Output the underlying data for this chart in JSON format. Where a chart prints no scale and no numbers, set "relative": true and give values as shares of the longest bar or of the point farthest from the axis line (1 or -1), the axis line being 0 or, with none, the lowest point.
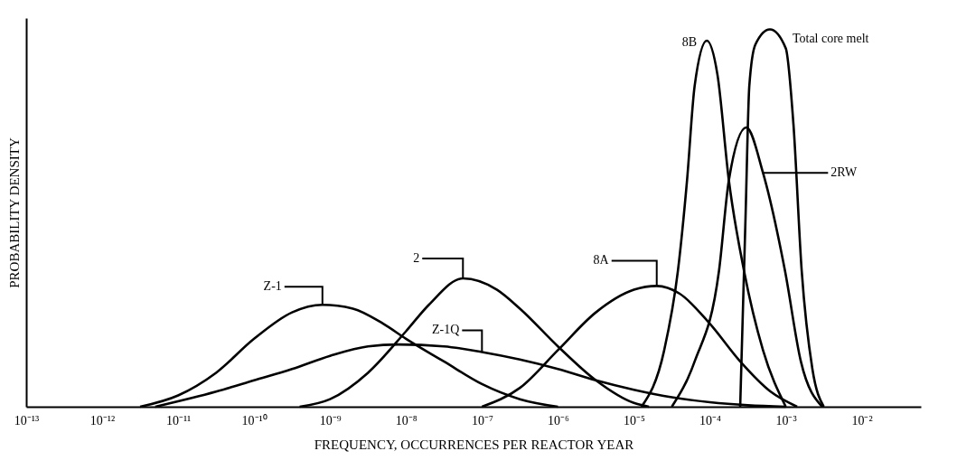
{
  "chart_data": {
    "type": "line",
    "relative": true,
    "xlabel": "FREQUENCY, OCCURRENCES PER REACTOR YEAR",
    "ylabel": "PROBABILITY DENSITY",
    "log": "x",
    "grid": false,
    "legend": false,
    "marker": "none",
    "line_style": "solid",
    "xlim": [
      1e-13,
      0.06
    ],
    "xticks": [
      {
        "value": 1e-13,
        "label": "10⁻¹³"
      },
      {
        "value": 1e-12,
        "label": "10⁻¹²"
      },
      {
        "value": 1e-11,
        "label": "10⁻¹¹"
      },
      {
        "value": 1e-10,
        "label": "10⁻¹⁰"
      },
      {
        "value": 1e-09,
        "label": "10⁻⁹"
      },
      {
        "value": 1e-08,
        "label": "10⁻⁸"
      },
      {
        "value": 1e-07,
        "label": "10⁻⁷"
      },
      {
        "value": 1e-06,
        "label": "10⁻⁶"
      },
      {
        "value": 1e-05,
        "label": "10⁻⁵"
      },
      {
        "value": 0.0001,
        "label": "10⁻⁴"
      },
      {
        "value": 0.001,
        "label": "10⁻³"
      },
      {
        "value": 0.01,
        "label": "10⁻²"
      }
    ],
    "series": [
      {
        "name": "Z-1",
        "color": "#000000",
        "x": [
          3.16e-12,
          1e-11,
          3.16e-11,
          1e-10,
          3.16e-10,
          7.94e-10,
          2e-09,
          5.01e-09,
          1e-08,
          3.16e-08,
          1e-07,
          3.16e-07,
          1e-06
        ],
        "values": [
          0,
          0.03,
          0.09,
          0.18,
          0.25,
          0.27,
          0.26,
          0.22,
          0.18,
          0.12,
          0.06,
          0.02,
          0
        ]
      },
      {
        "name": "Z-1Q",
        "color": "#000000",
        "x": [
          5.01e-12,
          3.16e-11,
          1e-10,
          3.16e-10,
          1e-09,
          3.16e-09,
          7.94e-09,
          3.16e-08,
          1e-07,
          3.16e-07,
          1e-06,
          3.16e-06,
          1e-05,
          3.16e-05,
          0.0001,
          0.000316,
          0.001
        ],
        "values": [
          0,
          0.04,
          0.07,
          0.1,
          0.135,
          0.16,
          0.165,
          0.16,
          0.145,
          0.125,
          0.1,
          0.07,
          0.045,
          0.025,
          0.012,
          0.004,
          0
        ]
      },
      {
        "name": "2",
        "color": "#000000",
        "x": [
          3.98e-10,
          1e-09,
          3.16e-09,
          1e-08,
          2e-08,
          5.62e-08,
          1.58e-07,
          3.16e-07,
          1e-06,
          3.16e-06,
          1e-05,
          1.58e-05
        ],
        "values": [
          0,
          0.02,
          0.09,
          0.2,
          0.27,
          0.34,
          0.31,
          0.26,
          0.16,
          0.07,
          0.01,
          0
        ]
      },
      {
        "name": "8A",
        "color": "#000000",
        "x": [
          1e-07,
          3.16e-07,
          1e-06,
          3.16e-06,
          1e-05,
          2e-05,
          3.98e-05,
          0.0001,
          0.000251,
          0.000631,
          0.00141
        ],
        "values": [
          0,
          0.05,
          0.15,
          0.25,
          0.31,
          0.32,
          0.3,
          0.22,
          0.12,
          0.04,
          0
        ]
      },
      {
        "name": "8B",
        "color": "#000000",
        "x": [
          1.26e-05,
          2.51e-05,
          3.8e-05,
          5.01e-05,
          6.31e-05,
          9.12e-05,
          0.000126,
          0.000178,
          0.000282,
          0.000501,
          0.001
        ],
        "values": [
          0,
          0.15,
          0.36,
          0.6,
          0.85,
          0.97,
          0.88,
          0.6,
          0.36,
          0.15,
          0
        ]
      },
      {
        "name": "2RW",
        "color": "#000000",
        "x": [
          3.16e-05,
          6.31e-05,
          0.000132,
          0.000178,
          0.000302,
          0.000501,
          0.000977,
          0.00158,
          0.00302
        ],
        "values": [
          0,
          0.12,
          0.36,
          0.6,
          0.74,
          0.62,
          0.36,
          0.12,
          0
        ]
      },
      {
        "name": "Total core melt",
        "color": "#000000",
        "x": [
          0.000251,
          0.000295,
          0.000331,
          0.000398,
          0.000617,
          0.001,
          0.00126,
          0.00162,
          0.00224,
          0.00316
        ],
        "values": [
          0,
          0.5,
          0.85,
          0.96,
          1.0,
          0.95,
          0.75,
          0.36,
          0.1,
          0
        ]
      }
    ]
  }
}
